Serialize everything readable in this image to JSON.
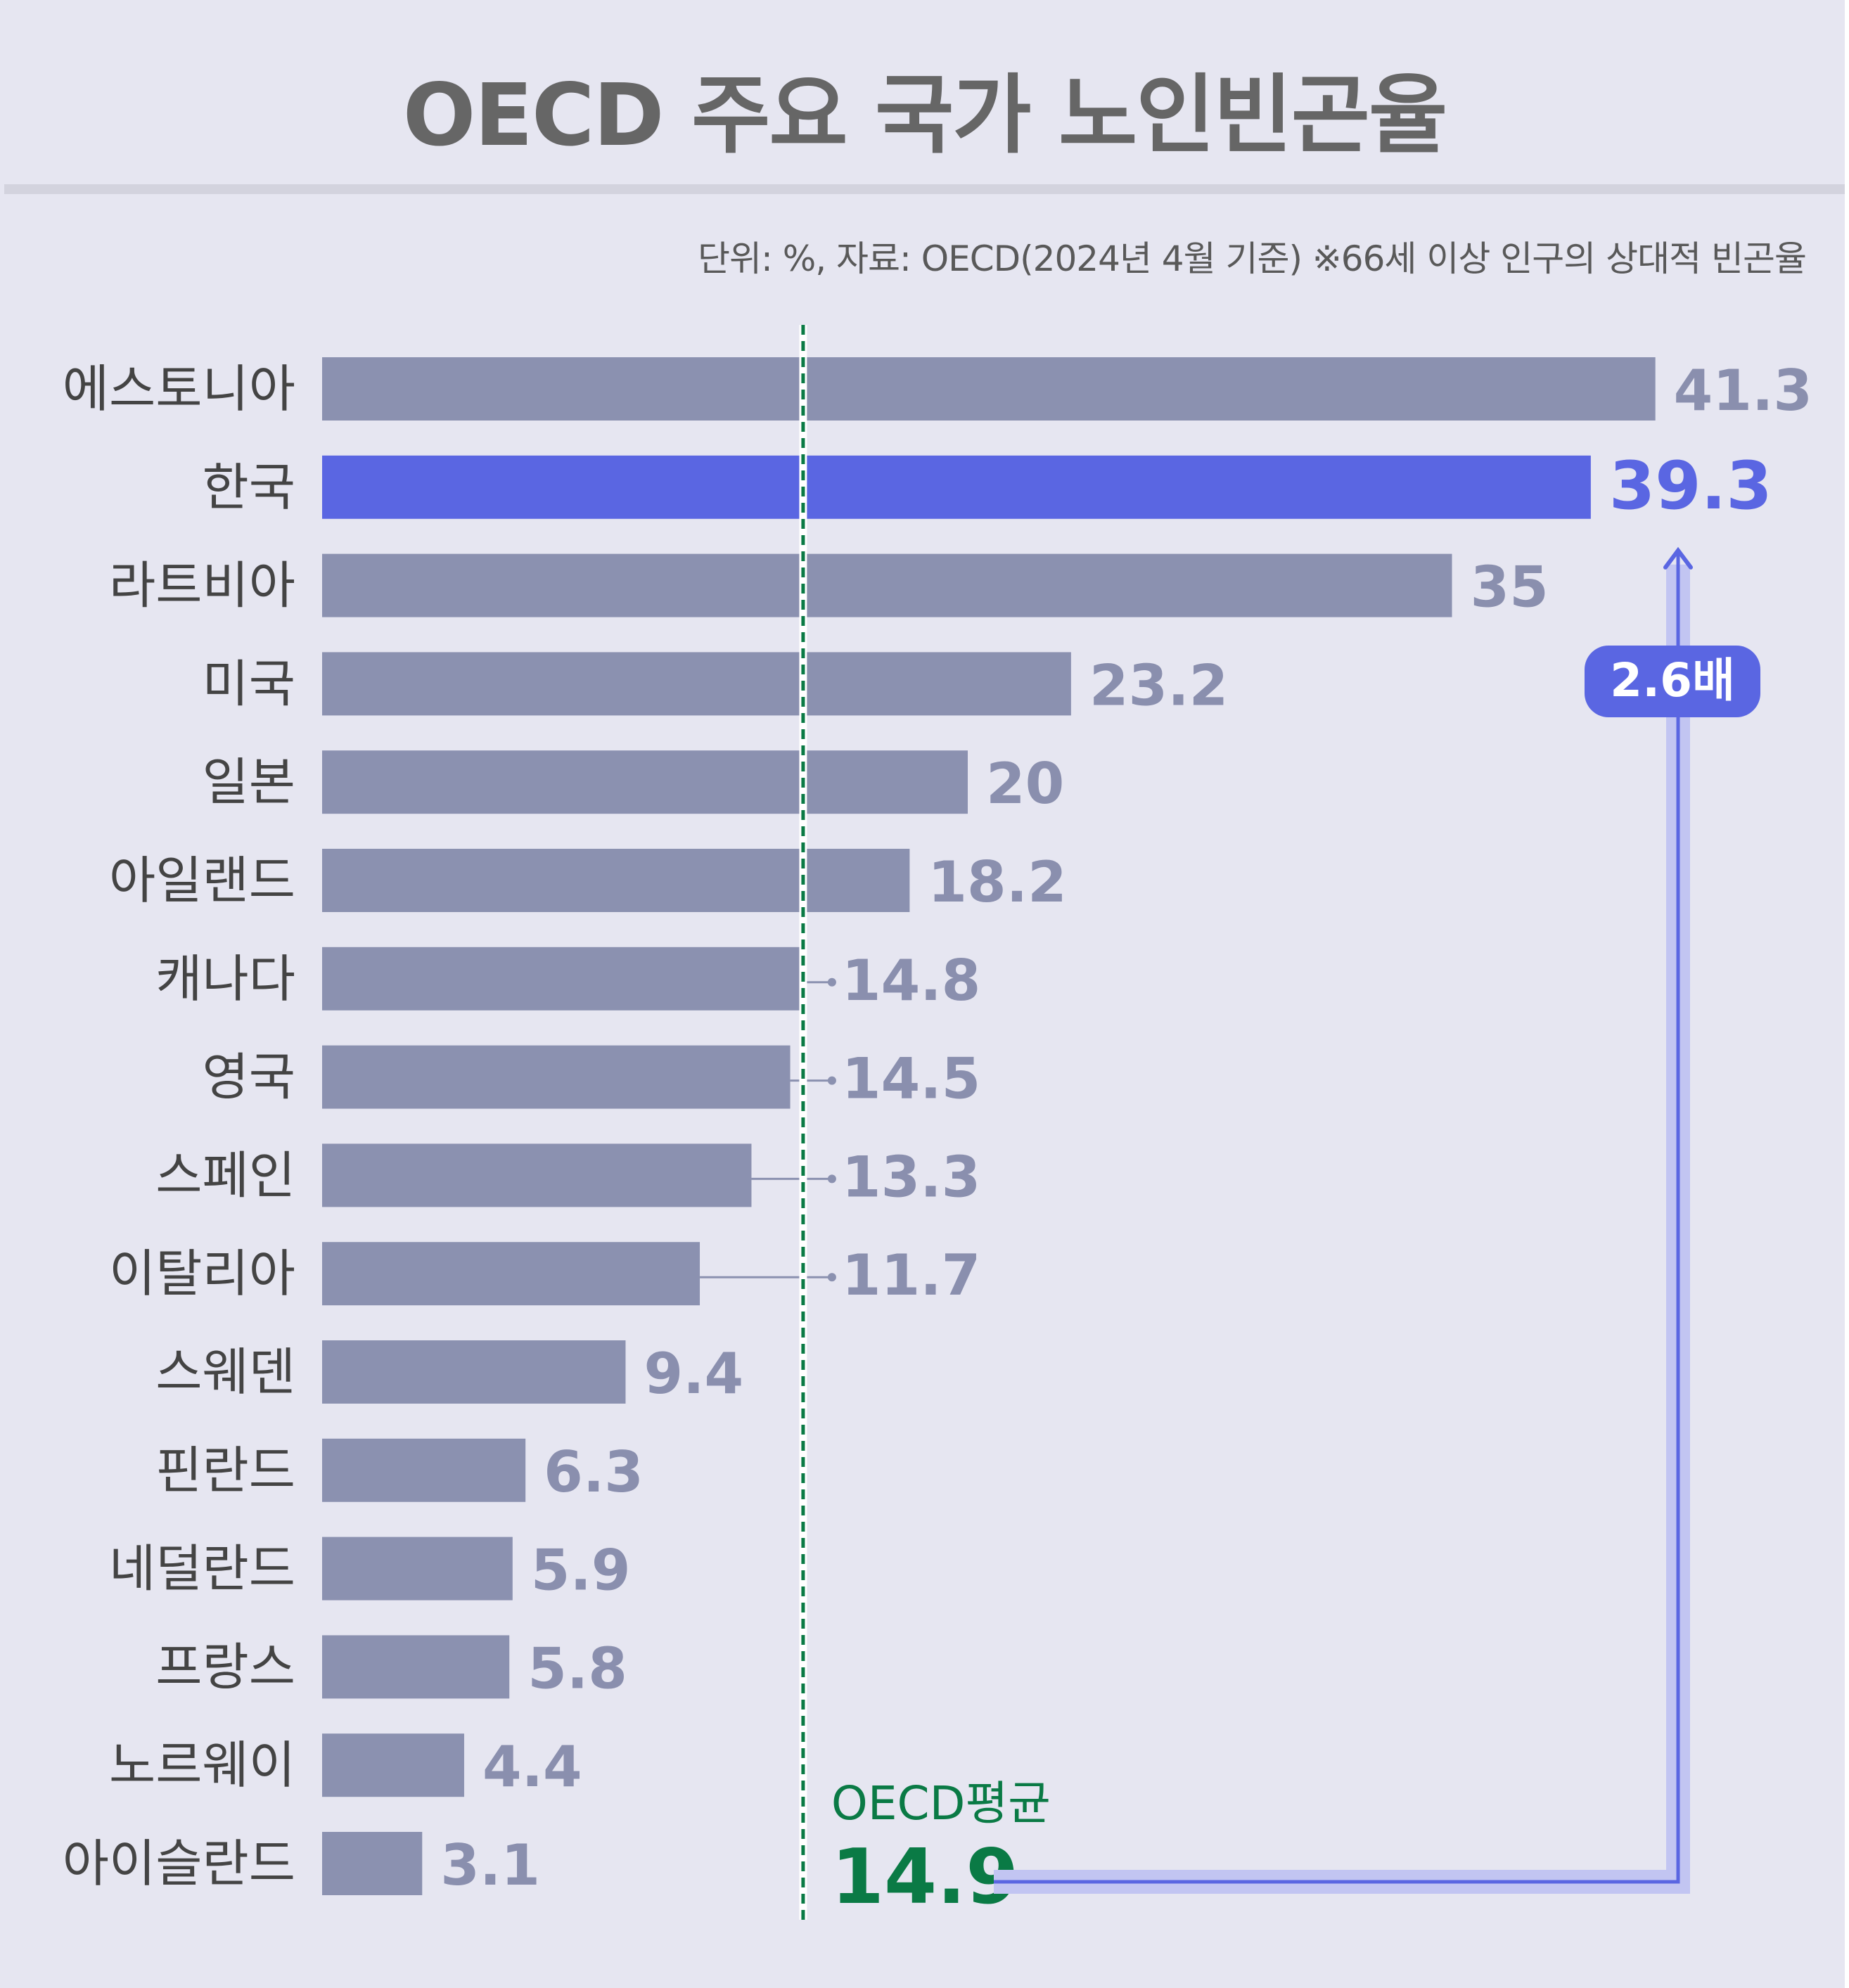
{
  "title": "OECD 주요 국가 노인빈곤율",
  "source_note": "단위: %, 자료: OECD(2024년 4월 기준) ※66세 이상 인구의 상대적 빈곤율",
  "colors": {
    "bar": "#8b91b0",
    "highlight": "#5a66e2",
    "average": "#0a7a45",
    "background": "#e6e6f1"
  },
  "chart_data": {
    "type": "bar",
    "orientation": "horizontal",
    "title": "OECD 주요 국가 노인빈곤율",
    "unit": "%",
    "categories": [
      "에스토니아",
      "한국",
      "라트비아",
      "미국",
      "일본",
      "아일랜드",
      "캐나다",
      "영국",
      "스페인",
      "이탈리아",
      "스웨덴",
      "핀란드",
      "네덜란드",
      "프랑스",
      "노르웨이",
      "아이슬란드"
    ],
    "values": [
      41.3,
      39.3,
      35,
      23.2,
      20,
      18.2,
      14.8,
      14.5,
      13.3,
      11.7,
      9.4,
      6.3,
      5.9,
      5.8,
      4.4,
      3.1
    ],
    "value_labels": [
      "41.3",
      "39.3",
      "35",
      "23.2",
      "20",
      "18.2",
      "14.8",
      "14.5",
      "13.3",
      "11.7",
      "9.4",
      "6.3",
      "5.9",
      "5.8",
      "4.4",
      "3.1"
    ],
    "highlight": "한국",
    "reference_line": {
      "label": "OECD평균",
      "value": 14.9,
      "value_label": "14.9"
    },
    "annotation": {
      "text": "2.6배",
      "from": "OECD평균",
      "to": "한국"
    },
    "xlim": [
      0,
      42
    ],
    "grid": false
  }
}
